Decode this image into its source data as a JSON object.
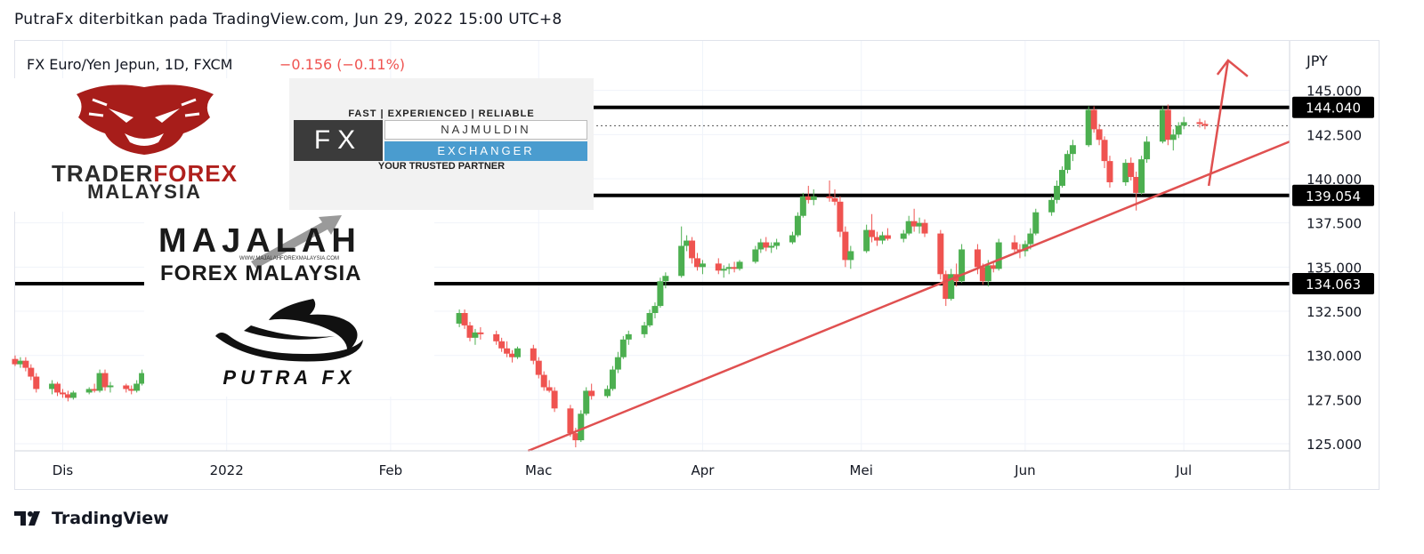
{
  "header": {
    "publish_line": "PutraFx diterbitkan pada TradingView.com, Jun 29, 2022 15:00 UTC+8"
  },
  "footer": {
    "brand": "TradingView"
  },
  "logos": {
    "traderforex_word_a": "TRADER",
    "traderforex_word_b": "FOREX",
    "traderforex_sub": "MALAYSIA",
    "najmuldin_top": "FAST | EXPERIENCED | RELIABLE",
    "najmuldin_fx": "FX",
    "najmuldin_name": "NAJMULDIN",
    "najmuldin_exchanger": "EXCHANGER",
    "najmuldin_bottom": "YOUR TRUSTED PARTNER",
    "majalah_title": "MAJALAH",
    "majalah_url": "WWW.MAJALAHFOREXMALAYSIA.COM",
    "majalah_sub": "FOREX  MALAYSIA",
    "putra_fx": "PUTRA FX"
  },
  "colors": {
    "up": "#4caf50",
    "down": "#ef5350",
    "line": "#e05050",
    "level": "#000000",
    "tiger": "#a71d1a",
    "accent_blue": "#4a9ccf"
  },
  "chart_data": {
    "type": "candlestick",
    "symbol_line": "FX Euro/Yen Jepun, 1D, FXCM",
    "change_text": "−0.156 (−0.11%)",
    "y_unit": "JPY",
    "y_ticks": [
      "145.000",
      "142.500",
      "140.000",
      "137.500",
      "135.000",
      "132.500",
      "130.000",
      "127.500",
      "125.000"
    ],
    "y_tick_values": [
      145,
      142.5,
      140,
      137.5,
      135,
      132.5,
      130,
      127.5,
      125
    ],
    "ylim": [
      124.6,
      147.8
    ],
    "x_ticks": [
      "Dis",
      "2022",
      "Feb",
      "Mac",
      "Apr",
      "Mei",
      "Jun",
      "Jul"
    ],
    "x_tick_dates": [
      "2021-12-01",
      "2022-01-01",
      "2022-02-01",
      "2022-03-01",
      "2022-04-01",
      "2022-05-01",
      "2022-06-01",
      "2022-07-01"
    ],
    "xlim": [
      "2021-11-22",
      "2022-07-21"
    ],
    "grid": true,
    "levels": [
      {
        "value": 144.04,
        "label": "144.040"
      },
      {
        "value": 139.054,
        "label": "139.054"
      },
      {
        "value": 134.063,
        "label": "134.063"
      }
    ],
    "last_price_dotted": 143.0,
    "trendline": {
      "start": [
        "2022-02-27",
        124.6
      ],
      "end": [
        "2022-07-21",
        142.1
      ]
    },
    "arrow": {
      "start": [
        "2022-07-01",
        139.6
      ],
      "end": [
        "2022-07-06",
        146.7
      ]
    },
    "candles": [
      {
        "date": "2021-11-22",
        "o": 129.8,
        "h": 130.0,
        "l": 129.4,
        "c": 129.5
      },
      {
        "date": "2021-11-23",
        "o": 129.5,
        "h": 129.9,
        "l": 129.3,
        "c": 129.7
      },
      {
        "date": "2021-11-24",
        "o": 129.7,
        "h": 129.9,
        "l": 129.1,
        "c": 129.3
      },
      {
        "date": "2021-11-25",
        "o": 129.3,
        "h": 129.5,
        "l": 128.6,
        "c": 128.8
      },
      {
        "date": "2021-11-26",
        "o": 128.8,
        "h": 129.0,
        "l": 127.9,
        "c": 128.1
      },
      {
        "date": "2021-11-29",
        "o": 128.1,
        "h": 128.6,
        "l": 127.8,
        "c": 128.4
      },
      {
        "date": "2021-11-30",
        "o": 128.4,
        "h": 128.5,
        "l": 127.7,
        "c": 127.9
      },
      {
        "date": "2021-12-01",
        "o": 127.9,
        "h": 128.1,
        "l": 127.6,
        "c": 127.8
      },
      {
        "date": "2021-12-02",
        "o": 127.8,
        "h": 128.0,
        "l": 127.4,
        "c": 127.6
      },
      {
        "date": "2021-12-03",
        "o": 127.6,
        "h": 128.0,
        "l": 127.5,
        "c": 127.9
      },
      {
        "date": "2021-12-06",
        "o": 127.9,
        "h": 128.2,
        "l": 127.8,
        "c": 128.1
      },
      {
        "date": "2021-12-07",
        "o": 128.1,
        "h": 128.4,
        "l": 127.9,
        "c": 128.0
      },
      {
        "date": "2021-12-08",
        "o": 128.0,
        "h": 129.2,
        "l": 127.9,
        "c": 129.0
      },
      {
        "date": "2021-12-09",
        "o": 129.0,
        "h": 129.2,
        "l": 128.0,
        "c": 128.2
      },
      {
        "date": "2021-12-10",
        "o": 128.2,
        "h": 128.5,
        "l": 127.9,
        "c": 128.3
      },
      {
        "date": "2021-12-13",
        "o": 128.3,
        "h": 128.4,
        "l": 127.9,
        "c": 128.1
      },
      {
        "date": "2021-12-14",
        "o": 128.1,
        "h": 128.3,
        "l": 127.8,
        "c": 128.0
      },
      {
        "date": "2021-12-15",
        "o": 128.0,
        "h": 128.6,
        "l": 127.9,
        "c": 128.4
      },
      {
        "date": "2021-12-16",
        "o": 128.4,
        "h": 129.2,
        "l": 128.3,
        "c": 129.0
      },
      {
        "date": "2022-02-14",
        "o": 131.8,
        "h": 132.6,
        "l": 131.6,
        "c": 132.4
      },
      {
        "date": "2022-02-15",
        "o": 132.4,
        "h": 132.6,
        "l": 131.5,
        "c": 131.7
      },
      {
        "date": "2022-02-16",
        "o": 131.7,
        "h": 131.9,
        "l": 130.8,
        "c": 131.0
      },
      {
        "date": "2022-02-17",
        "o": 131.0,
        "h": 131.5,
        "l": 130.6,
        "c": 131.3
      },
      {
        "date": "2022-02-18",
        "o": 131.3,
        "h": 131.6,
        "l": 130.9,
        "c": 131.2
      },
      {
        "date": "2022-02-21",
        "o": 131.2,
        "h": 131.4,
        "l": 130.6,
        "c": 130.8
      },
      {
        "date": "2022-02-22",
        "o": 130.8,
        "h": 131.0,
        "l": 130.2,
        "c": 130.4
      },
      {
        "date": "2022-02-23",
        "o": 130.4,
        "h": 130.8,
        "l": 129.9,
        "c": 130.1
      },
      {
        "date": "2022-02-24",
        "o": 130.1,
        "h": 130.3,
        "l": 129.6,
        "c": 129.9
      },
      {
        "date": "2022-02-25",
        "o": 129.9,
        "h": 130.5,
        "l": 129.8,
        "c": 130.4
      },
      {
        "date": "2022-02-28",
        "o": 130.4,
        "h": 130.6,
        "l": 129.5,
        "c": 129.7
      },
      {
        "date": "2022-03-01",
        "o": 129.7,
        "h": 129.9,
        "l": 128.7,
        "c": 128.9
      },
      {
        "date": "2022-03-02",
        "o": 128.9,
        "h": 129.1,
        "l": 128.0,
        "c": 128.2
      },
      {
        "date": "2022-03-03",
        "o": 128.2,
        "h": 128.6,
        "l": 127.9,
        "c": 128.0
      },
      {
        "date": "2022-03-04",
        "o": 128.0,
        "h": 128.2,
        "l": 126.8,
        "c": 127.0
      },
      {
        "date": "2022-03-07",
        "o": 127.0,
        "h": 127.2,
        "l": 125.4,
        "c": 125.6
      },
      {
        "date": "2022-03-08",
        "o": 125.6,
        "h": 125.9,
        "l": 124.8,
        "c": 125.2
      },
      {
        "date": "2022-03-09",
        "o": 125.2,
        "h": 126.9,
        "l": 125.1,
        "c": 126.7
      },
      {
        "date": "2022-03-10",
        "o": 126.7,
        "h": 128.2,
        "l": 126.6,
        "c": 128.0
      },
      {
        "date": "2022-03-11",
        "o": 128.0,
        "h": 128.4,
        "l": 127.5,
        "c": 127.7
      },
      {
        "date": "2022-03-14",
        "o": 127.7,
        "h": 128.3,
        "l": 127.6,
        "c": 128.1
      },
      {
        "date": "2022-03-15",
        "o": 128.1,
        "h": 129.4,
        "l": 128.0,
        "c": 129.2
      },
      {
        "date": "2022-03-16",
        "o": 129.2,
        "h": 130.2,
        "l": 129.0,
        "c": 129.9
      },
      {
        "date": "2022-03-17",
        "o": 129.9,
        "h": 131.1,
        "l": 129.8,
        "c": 130.9
      },
      {
        "date": "2022-03-18",
        "o": 130.9,
        "h": 131.4,
        "l": 130.6,
        "c": 131.2
      },
      {
        "date": "2022-03-21",
        "o": 131.2,
        "h": 131.9,
        "l": 131.0,
        "c": 131.7
      },
      {
        "date": "2022-03-22",
        "o": 131.7,
        "h": 132.6,
        "l": 131.6,
        "c": 132.4
      },
      {
        "date": "2022-03-23",
        "o": 132.4,
        "h": 133.0,
        "l": 132.1,
        "c": 132.8
      },
      {
        "date": "2022-03-24",
        "o": 132.8,
        "h": 134.4,
        "l": 132.7,
        "c": 134.2
      },
      {
        "date": "2022-03-25",
        "o": 134.2,
        "h": 134.7,
        "l": 133.8,
        "c": 134.5
      },
      {
        "date": "2022-03-28",
        "o": 134.5,
        "h": 137.3,
        "l": 134.4,
        "c": 136.2
      },
      {
        "date": "2022-03-29",
        "o": 136.2,
        "h": 136.8,
        "l": 135.9,
        "c": 136.5
      },
      {
        "date": "2022-03-30",
        "o": 136.5,
        "h": 136.7,
        "l": 135.2,
        "c": 135.5
      },
      {
        "date": "2022-03-31",
        "o": 135.5,
        "h": 135.8,
        "l": 134.8,
        "c": 135.0
      },
      {
        "date": "2022-04-01",
        "o": 135.0,
        "h": 135.4,
        "l": 134.6,
        "c": 135.2
      },
      {
        "date": "2022-04-04",
        "o": 135.2,
        "h": 135.5,
        "l": 134.6,
        "c": 134.8
      },
      {
        "date": "2022-04-05",
        "o": 134.8,
        "h": 135.1,
        "l": 134.4,
        "c": 134.9
      },
      {
        "date": "2022-04-06",
        "o": 134.9,
        "h": 135.2,
        "l": 134.6,
        "c": 135.0
      },
      {
        "date": "2022-04-07",
        "o": 135.0,
        "h": 135.3,
        "l": 134.7,
        "c": 134.9
      },
      {
        "date": "2022-04-08",
        "o": 134.9,
        "h": 135.4,
        "l": 134.8,
        "c": 135.3
      },
      {
        "date": "2022-04-11",
        "o": 135.3,
        "h": 136.2,
        "l": 135.2,
        "c": 136.0
      },
      {
        "date": "2022-04-12",
        "o": 136.0,
        "h": 136.6,
        "l": 135.8,
        "c": 136.4
      },
      {
        "date": "2022-04-13",
        "o": 136.4,
        "h": 136.7,
        "l": 135.9,
        "c": 136.1
      },
      {
        "date": "2022-04-14",
        "o": 136.1,
        "h": 136.4,
        "l": 135.8,
        "c": 136.2
      },
      {
        "date": "2022-04-15",
        "o": 136.2,
        "h": 136.6,
        "l": 136.0,
        "c": 136.4
      },
      {
        "date": "2022-04-18",
        "o": 136.4,
        "h": 137.0,
        "l": 136.3,
        "c": 136.8
      },
      {
        "date": "2022-04-19",
        "o": 136.8,
        "h": 138.1,
        "l": 136.7,
        "c": 137.9
      },
      {
        "date": "2022-04-20",
        "o": 137.9,
        "h": 139.2,
        "l": 137.8,
        "c": 139.0
      },
      {
        "date": "2022-04-21",
        "o": 139.0,
        "h": 139.6,
        "l": 138.6,
        "c": 138.8
      },
      {
        "date": "2022-04-22",
        "o": 138.8,
        "h": 139.4,
        "l": 138.5,
        "c": 139.0
      },
      {
        "date": "2022-04-25",
        "o": 139.0,
        "h": 139.9,
        "l": 138.7,
        "c": 138.9
      },
      {
        "date": "2022-04-26",
        "o": 138.9,
        "h": 139.4,
        "l": 138.5,
        "c": 138.7
      },
      {
        "date": "2022-04-27",
        "o": 138.7,
        "h": 139.0,
        "l": 136.7,
        "c": 137.0
      },
      {
        "date": "2022-04-28",
        "o": 137.0,
        "h": 137.3,
        "l": 135.0,
        "c": 135.4
      },
      {
        "date": "2022-04-29",
        "o": 135.4,
        "h": 136.2,
        "l": 134.9,
        "c": 135.9
      },
      {
        "date": "2022-05-02",
        "o": 135.9,
        "h": 137.4,
        "l": 135.8,
        "c": 137.1
      },
      {
        "date": "2022-05-03",
        "o": 137.1,
        "h": 138.0,
        "l": 136.4,
        "c": 136.7
      },
      {
        "date": "2022-05-04",
        "o": 136.7,
        "h": 137.0,
        "l": 136.2,
        "c": 136.5
      },
      {
        "date": "2022-05-05",
        "o": 136.5,
        "h": 137.0,
        "l": 136.3,
        "c": 136.8
      },
      {
        "date": "2022-05-06",
        "o": 136.8,
        "h": 137.2,
        "l": 136.5,
        "c": 136.6
      },
      {
        "date": "2022-05-09",
        "o": 136.6,
        "h": 137.1,
        "l": 136.4,
        "c": 136.9
      },
      {
        "date": "2022-05-10",
        "o": 136.9,
        "h": 137.9,
        "l": 136.8,
        "c": 137.6
      },
      {
        "date": "2022-05-11",
        "o": 137.6,
        "h": 138.3,
        "l": 137.0,
        "c": 137.3
      },
      {
        "date": "2022-05-12",
        "o": 137.3,
        "h": 137.8,
        "l": 136.9,
        "c": 137.5
      },
      {
        "date": "2022-05-13",
        "o": 137.5,
        "h": 137.7,
        "l": 136.7,
        "c": 136.9
      },
      {
        "date": "2022-05-16",
        "o": 136.9,
        "h": 137.1,
        "l": 134.3,
        "c": 134.6
      },
      {
        "date": "2022-05-17",
        "o": 134.6,
        "h": 134.8,
        "l": 132.8,
        "c": 133.2
      },
      {
        "date": "2022-05-18",
        "o": 133.2,
        "h": 134.9,
        "l": 133.1,
        "c": 134.6
      },
      {
        "date": "2022-05-19",
        "o": 134.6,
        "h": 135.2,
        "l": 133.9,
        "c": 134.2
      },
      {
        "date": "2022-05-20",
        "o": 134.2,
        "h": 136.3,
        "l": 134.1,
        "c": 136.0
      },
      {
        "date": "2022-05-23",
        "o": 136.0,
        "h": 136.3,
        "l": 134.6,
        "c": 135.0
      },
      {
        "date": "2022-05-24",
        "o": 135.0,
        "h": 135.2,
        "l": 134.0,
        "c": 134.2
      },
      {
        "date": "2022-05-25",
        "o": 134.2,
        "h": 135.4,
        "l": 133.9,
        "c": 135.1
      },
      {
        "date": "2022-05-26",
        "o": 135.1,
        "h": 135.3,
        "l": 134.7,
        "c": 134.9
      },
      {
        "date": "2022-05-27",
        "o": 134.9,
        "h": 136.6,
        "l": 134.8,
        "c": 136.4
      },
      {
        "date": "2022-05-30",
        "o": 136.4,
        "h": 136.8,
        "l": 135.8,
        "c": 136.0
      },
      {
        "date": "2022-05-31",
        "o": 136.0,
        "h": 136.3,
        "l": 135.5,
        "c": 135.9
      },
      {
        "date": "2022-06-01",
        "o": 135.9,
        "h": 136.5,
        "l": 135.6,
        "c": 136.3
      },
      {
        "date": "2022-06-02",
        "o": 136.3,
        "h": 137.2,
        "l": 136.0,
        "c": 136.9
      },
      {
        "date": "2022-06-03",
        "o": 136.9,
        "h": 138.3,
        "l": 136.8,
        "c": 138.1
      },
      {
        "date": "2022-06-06",
        "o": 138.1,
        "h": 139.0,
        "l": 137.9,
        "c": 138.8
      },
      {
        "date": "2022-06-07",
        "o": 138.8,
        "h": 139.9,
        "l": 138.6,
        "c": 139.6
      },
      {
        "date": "2022-06-08",
        "o": 139.6,
        "h": 140.7,
        "l": 139.5,
        "c": 140.5
      },
      {
        "date": "2022-06-09",
        "o": 140.5,
        "h": 141.6,
        "l": 140.3,
        "c": 141.4
      },
      {
        "date": "2022-06-10",
        "o": 141.4,
        "h": 142.2,
        "l": 141.0,
        "c": 141.9
      },
      {
        "date": "2022-06-13",
        "o": 141.9,
        "h": 144.1,
        "l": 141.8,
        "c": 143.9
      },
      {
        "date": "2022-06-14",
        "o": 143.9,
        "h": 144.1,
        "l": 142.6,
        "c": 142.8
      },
      {
        "date": "2022-06-15",
        "o": 142.8,
        "h": 143.1,
        "l": 141.9,
        "c": 142.2
      },
      {
        "date": "2022-06-16",
        "o": 142.2,
        "h": 142.4,
        "l": 140.6,
        "c": 141.0
      },
      {
        "date": "2022-06-17",
        "o": 141.0,
        "h": 141.3,
        "l": 139.5,
        "c": 139.8
      },
      {
        "date": "2022-06-20",
        "o": 139.8,
        "h": 141.1,
        "l": 139.6,
        "c": 140.9
      },
      {
        "date": "2022-06-21",
        "o": 140.9,
        "h": 141.2,
        "l": 139.9,
        "c": 140.1
      },
      {
        "date": "2022-06-22",
        "o": 140.1,
        "h": 140.4,
        "l": 138.2,
        "c": 139.2
      },
      {
        "date": "2022-06-23",
        "o": 139.2,
        "h": 141.3,
        "l": 139.1,
        "c": 141.1
      },
      {
        "date": "2022-06-24",
        "o": 141.1,
        "h": 142.4,
        "l": 140.9,
        "c": 142.1
      },
      {
        "date": "2022-06-27",
        "o": 142.1,
        "h": 144.1,
        "l": 142.0,
        "c": 143.9
      },
      {
        "date": "2022-06-28",
        "o": 143.9,
        "h": 144.2,
        "l": 141.9,
        "c": 142.2
      },
      {
        "date": "2022-06-29",
        "o": 142.2,
        "h": 142.8,
        "l": 141.6,
        "c": 142.5
      },
      {
        "date": "2022-06-30",
        "o": 142.5,
        "h": 143.2,
        "l": 142.3,
        "c": 143.0
      },
      {
        "date": "2022-07-01",
        "o": 143.0,
        "h": 143.5,
        "l": 142.8,
        "c": 143.2
      },
      {
        "date": "2022-07-04",
        "o": 143.2,
        "h": 143.4,
        "l": 142.9,
        "c": 143.1
      },
      {
        "date": "2022-07-05",
        "o": 143.1,
        "h": 143.3,
        "l": 142.8,
        "c": 143.0
      }
    ]
  }
}
